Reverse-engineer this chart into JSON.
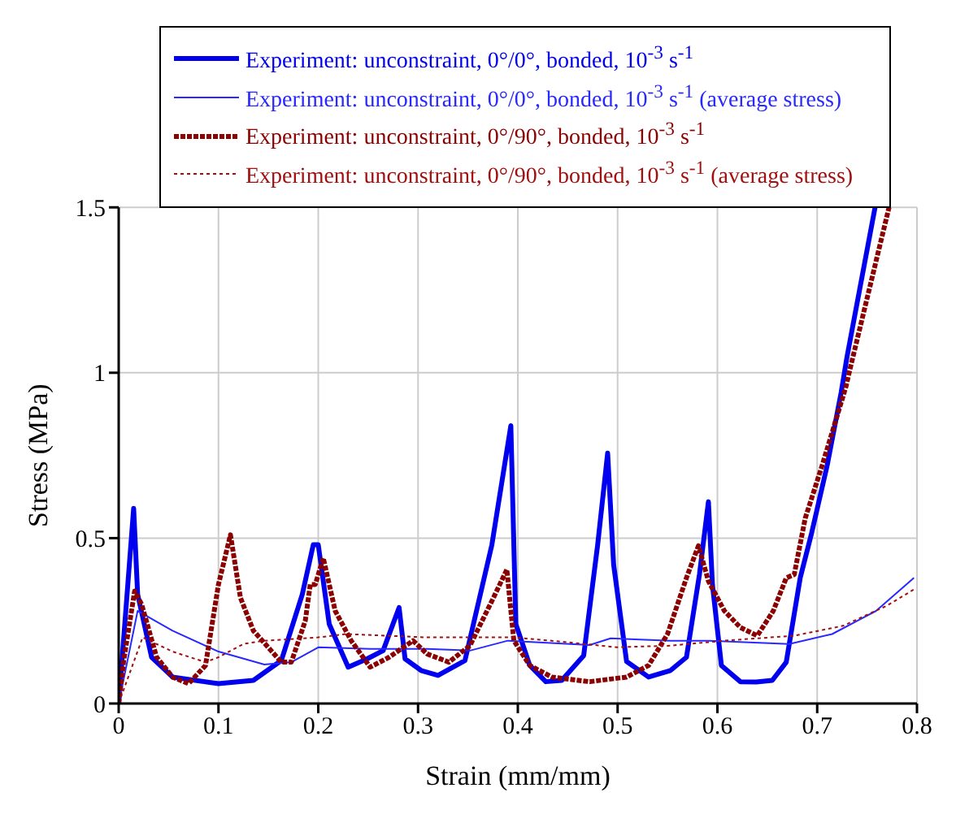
{
  "chart_data": {
    "type": "line",
    "xlabel": "Strain (mm/mm)",
    "ylabel": "Stress (MPa)",
    "xlim": [
      0,
      0.8
    ],
    "ylim": [
      0,
      1.5
    ],
    "xticks": [
      0,
      0.1,
      0.2,
      0.3,
      0.4,
      0.5,
      0.6,
      0.7,
      0.8
    ],
    "yticks": [
      0,
      0.5,
      1,
      1.5
    ],
    "grid": true,
    "legend": "top",
    "marker": "none",
    "series": [
      {
        "name": "Experiment: unconstraint, 0°/0°, bonded, 10$^{-3}$ s$^{-1}$",
        "color": "#0000ee",
        "line_style": "solid",
        "x": [
          0,
          0.015,
          0.019,
          0.033,
          0.054,
          0.1,
          0.135,
          0.163,
          0.184,
          0.195,
          0.2,
          0.211,
          0.23,
          0.249,
          0.265,
          0.281,
          0.287,
          0.303,
          0.32,
          0.347,
          0.374,
          0.393,
          0.398,
          0.412,
          0.428,
          0.444,
          0.466,
          0.48,
          0.49,
          0.496,
          0.509,
          0.531,
          0.553,
          0.569,
          0.582,
          0.591,
          0.595,
          0.604,
          0.623,
          0.639,
          0.655,
          0.669,
          0.683,
          0.694,
          0.71,
          0.724,
          0.73,
          0.758
        ],
        "values": [
          0,
          0.59,
          0.33,
          0.14,
          0.08,
          0.06,
          0.07,
          0.13,
          0.33,
          0.48,
          0.48,
          0.24,
          0.11,
          0.135,
          0.16,
          0.29,
          0.135,
          0.1,
          0.085,
          0.13,
          0.48,
          0.84,
          0.24,
          0.115,
          0.066,
          0.07,
          0.145,
          0.48,
          0.757,
          0.42,
          0.127,
          0.08,
          0.1,
          0.14,
          0.39,
          0.61,
          0.36,
          0.115,
          0.066,
          0.065,
          0.07,
          0.125,
          0.38,
          0.51,
          0.72,
          0.94,
          1.05,
          1.5
        ]
      },
      {
        "name": "Experiment: unconstraint, 0°/0°, bonded, 10$^{-3}$ s$^{-1}$ (average stress)",
        "color": "#2828ff",
        "line_style": "solid",
        "x": [
          0,
          0.019,
          0.054,
          0.1,
          0.146,
          0.173,
          0.2,
          0.252,
          0.309,
          0.352,
          0.39,
          0.472,
          0.493,
          0.553,
          0.592,
          0.672,
          0.715,
          0.759,
          0.797
        ],
        "values": [
          0,
          0.28,
          0.22,
          0.157,
          0.118,
          0.125,
          0.17,
          0.165,
          0.165,
          0.16,
          0.19,
          0.177,
          0.197,
          0.19,
          0.19,
          0.18,
          0.21,
          0.28,
          0.38
        ]
      },
      {
        "name": "Experiment: unconstraint, 0°/90°, bonded, 10$^{-3}$ s$^{-1}$",
        "color": "#8b0000",
        "line_style": "dashed",
        "x": [
          0,
          0.005,
          0.016,
          0.023,
          0.038,
          0.054,
          0.07,
          0.087,
          0.1,
          0.112,
          0.122,
          0.135,
          0.163,
          0.173,
          0.187,
          0.192,
          0.197,
          0.205,
          0.217,
          0.233,
          0.252,
          0.271,
          0.295,
          0.309,
          0.331,
          0.352,
          0.374,
          0.389,
          0.396,
          0.412,
          0.434,
          0.472,
          0.509,
          0.531,
          0.55,
          0.569,
          0.581,
          0.591,
          0.607,
          0.623,
          0.64,
          0.656,
          0.669,
          0.677,
          0.688,
          0.705,
          0.729,
          0.732,
          0.772
        ],
        "values": [
          0,
          0.13,
          0.34,
          0.3,
          0.14,
          0.08,
          0.06,
          0.115,
          0.36,
          0.51,
          0.32,
          0.22,
          0.125,
          0.125,
          0.25,
          0.36,
          0.36,
          0.44,
          0.28,
          0.19,
          0.11,
          0.14,
          0.19,
          0.15,
          0.125,
          0.175,
          0.31,
          0.405,
          0.19,
          0.115,
          0.08,
          0.066,
          0.08,
          0.115,
          0.21,
          0.38,
          0.477,
          0.37,
          0.28,
          0.23,
          0.205,
          0.28,
          0.38,
          0.39,
          0.56,
          0.72,
          0.96,
          1,
          1.5
        ]
      },
      {
        "name": "Experiment: unconstraint, 0°/90°, bonded, 10$^{-3}$ s$^{-1}$ (average stress)",
        "color": "#a01010",
        "line_style": "dotted",
        "x": [
          0,
          0.024,
          0.054,
          0.087,
          0.1,
          0.125,
          0.146,
          0.2,
          0.228,
          0.309,
          0.395,
          0.444,
          0.499,
          0.553,
          0.607,
          0.677,
          0.726,
          0.77,
          0.797
        ],
        "values": [
          0,
          0.2,
          0.157,
          0.125,
          0.14,
          0.18,
          0.19,
          0.2,
          0.21,
          0.2,
          0.2,
          0.187,
          0.17,
          0.175,
          0.19,
          0.205,
          0.235,
          0.296,
          0.345
        ]
      }
    ]
  }
}
